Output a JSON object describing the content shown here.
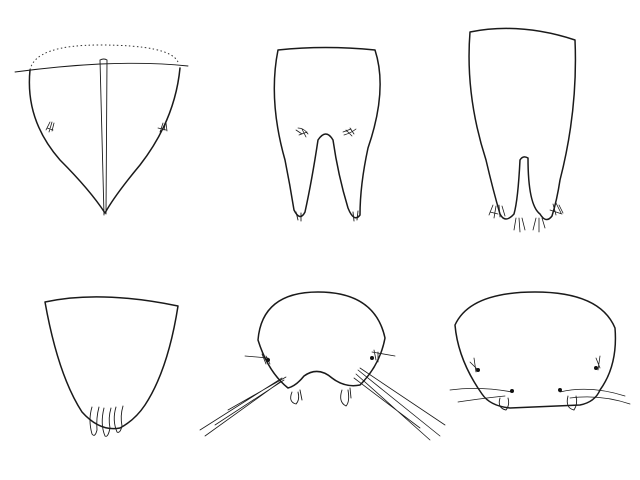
{
  "plate": {
    "stroke_color": "#1a1a1a",
    "background": "#ffffff",
    "figures": [
      {
        "id": "fig-1",
        "row": 1,
        "col": 1
      },
      {
        "id": "fig-2",
        "row": 1,
        "col": 2
      },
      {
        "id": "fig-3",
        "row": 1,
        "col": 3
      },
      {
        "id": "fig-4",
        "row": 2,
        "col": 1
      },
      {
        "id": "fig-5",
        "row": 2,
        "col": 2
      },
      {
        "id": "fig-6",
        "row": 2,
        "col": 3
      }
    ]
  }
}
